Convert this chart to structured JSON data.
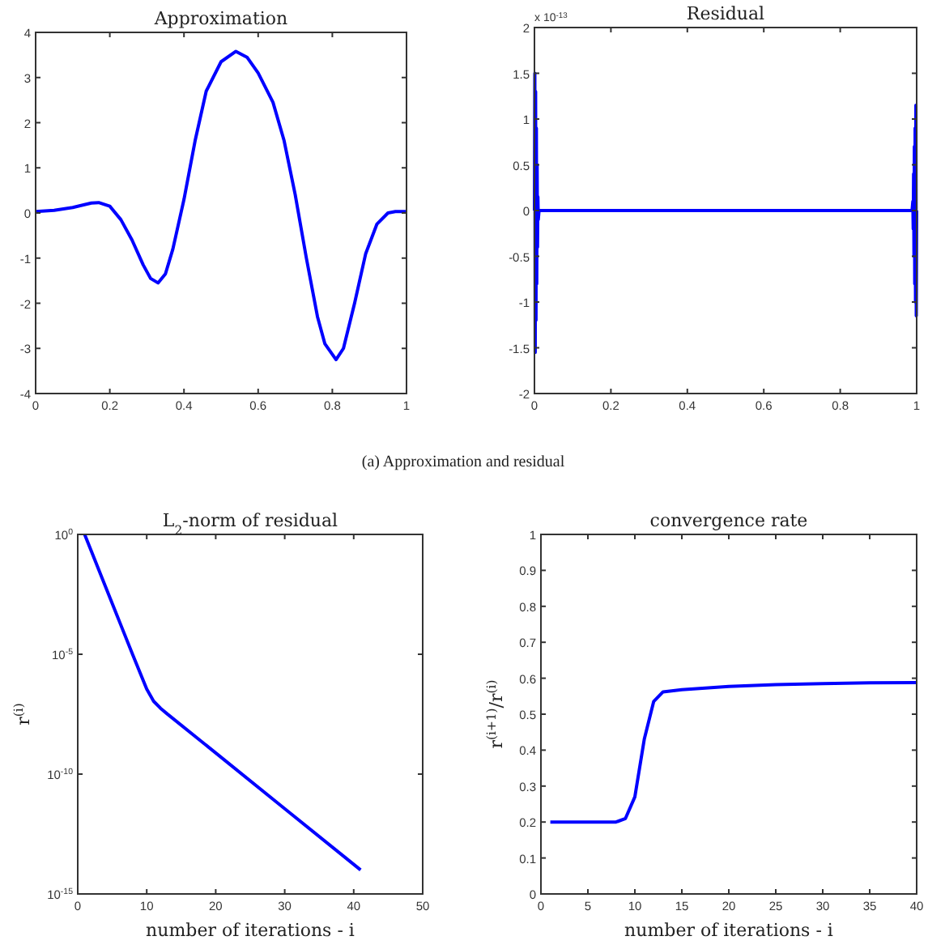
{
  "chart_data": [
    {
      "type": "line",
      "title": "Approximation",
      "xlim": [
        0,
        1
      ],
      "ylim": [
        -4,
        4
      ],
      "xticks": [
        0,
        0.2,
        0.4,
        0.6,
        0.8,
        1
      ],
      "yticks": [
        -4,
        -3,
        -2,
        -1,
        0,
        1,
        2,
        3,
        4
      ],
      "grid": false,
      "annotations": [
        "(a) Approximation and residual"
      ],
      "series": [
        {
          "color": "#0000ff",
          "x": [
            0,
            0.05,
            0.1,
            0.15,
            0.17,
            0.2,
            0.23,
            0.26,
            0.29,
            0.31,
            0.33,
            0.35,
            0.37,
            0.4,
            0.43,
            0.46,
            0.5,
            0.54,
            0.57,
            0.6,
            0.64,
            0.67,
            0.7,
            0.73,
            0.76,
            0.78,
            0.81,
            0.83,
            0.86,
            0.89,
            0.92,
            0.95,
            0.97,
            1
          ],
          "values": [
            0.03,
            0.06,
            0.12,
            0.22,
            0.23,
            0.15,
            -0.15,
            -0.6,
            -1.15,
            -1.45,
            -1.55,
            -1.35,
            -0.8,
            0.3,
            1.6,
            2.7,
            3.35,
            3.58,
            3.45,
            3.1,
            2.45,
            1.6,
            0.4,
            -1.0,
            -2.3,
            -2.9,
            -3.25,
            -3.0,
            -2.0,
            -0.9,
            -0.25,
            0.0,
            0.03,
            0.03
          ]
        }
      ]
    },
    {
      "type": "line",
      "title": "Residual",
      "xlim": [
        0,
        1
      ],
      "ylim": [
        -2,
        2
      ],
      "xticks": [
        0,
        0.2,
        0.4,
        0.6,
        0.8,
        1
      ],
      "yticks": [
        -2,
        -1.5,
        -1,
        -0.5,
        0,
        0.5,
        1,
        1.5,
        2
      ],
      "grid": false,
      "annotations": [
        "x 10$^{-13}$"
      ],
      "series": [
        {
          "color": "#0000ff",
          "x": [
            0,
            0.001,
            0.002,
            0.003,
            0.004,
            0.005,
            0.006,
            0.007,
            0.008,
            0.009,
            0.01,
            0.012,
            0.5,
            0.988,
            0.99,
            0.991,
            0.992,
            0.993,
            0.994,
            0.995,
            0.996,
            0.997,
            0.998,
            0.999,
            1
          ],
          "values": [
            0,
            1.5,
            -1.55,
            1.3,
            -1.2,
            0.9,
            -0.8,
            0.5,
            -0.4,
            0.15,
            -0.1,
            0,
            0,
            0,
            0.1,
            -0.2,
            0.4,
            -0.5,
            0.7,
            -0.8,
            0.9,
            -1.0,
            1.15,
            -1.15,
            0
          ]
        }
      ]
    },
    {
      "type": "line",
      "title": "L$_{2}$-norm of residual",
      "xlabel": "number of iterations - i",
      "ylabel": "r$^{(i)}$",
      "log": "y",
      "xlim": [
        0,
        50
      ],
      "ylim": [
        1e-15,
        1
      ],
      "xticks": [
        0,
        10,
        20,
        30,
        40,
        50
      ],
      "yticks": [
        {
          "value": 1e-15,
          "label": "10$^{-15}$"
        },
        {
          "value": 1e-10,
          "label": "10$^{-10}$"
        },
        {
          "value": 1e-05,
          "label": "10$^{-5}$"
        },
        {
          "value": 1,
          "label": "10$^{0}$"
        }
      ],
      "grid": false,
      "series": [
        {
          "color": "#0000ff",
          "x": [
            1,
            2,
            4,
            6,
            8,
            10,
            11,
            12,
            13,
            20,
            30,
            41
          ],
          "values": [
            1,
            0.19,
            0.0069,
            0.00025,
            9.1e-06,
            3.5e-07,
            1.1e-07,
            5.6e-08,
            3.2e-08,
            7.6e-10,
            3.6e-12,
            1e-14
          ]
        }
      ]
    },
    {
      "type": "line",
      "title": "convergence rate",
      "xlabel": "number of iterations - i",
      "ylabel": "r$^{(i+1)}$/r$^{(i)}$",
      "xlim": [
        0,
        40
      ],
      "ylim": [
        0,
        1
      ],
      "xticks": [
        0,
        5,
        10,
        15,
        20,
        25,
        30,
        35,
        40
      ],
      "yticks": [
        0,
        0.1,
        0.2,
        0.3,
        0.4,
        0.5,
        0.6,
        0.7,
        0.8,
        0.9,
        1
      ],
      "grid": false,
      "series": [
        {
          "color": "#0000ff",
          "x": [
            1,
            8,
            9,
            10,
            11,
            12,
            13,
            15,
            20,
            25,
            30,
            35,
            40
          ],
          "values": [
            0.2,
            0.2,
            0.21,
            0.27,
            0.43,
            0.535,
            0.562,
            0.568,
            0.577,
            0.582,
            0.585,
            0.587,
            0.588
          ]
        }
      ]
    }
  ]
}
